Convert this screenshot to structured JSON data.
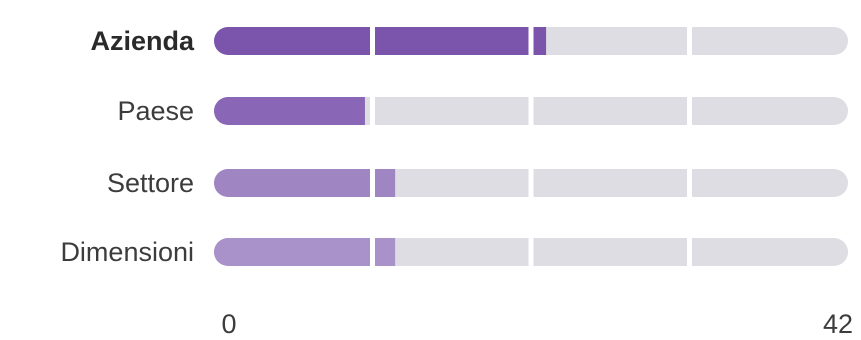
{
  "chart_data": {
    "type": "bar",
    "orientation": "horizontal",
    "categories": [
      "Azienda",
      "Paese",
      "Settore",
      "Dimensioni"
    ],
    "highlighted_category": "Azienda",
    "values": [
      22,
      10,
      12,
      12
    ],
    "xlim": [
      0,
      42
    ],
    "x_tick_labels": [
      "0",
      "42"
    ],
    "segment_size": 10.5,
    "colors": {
      "track": "#dedde3",
      "bars": [
        "#7b55ac",
        "#8a67b6",
        "#9f86c3",
        "#a892c9"
      ]
    }
  }
}
